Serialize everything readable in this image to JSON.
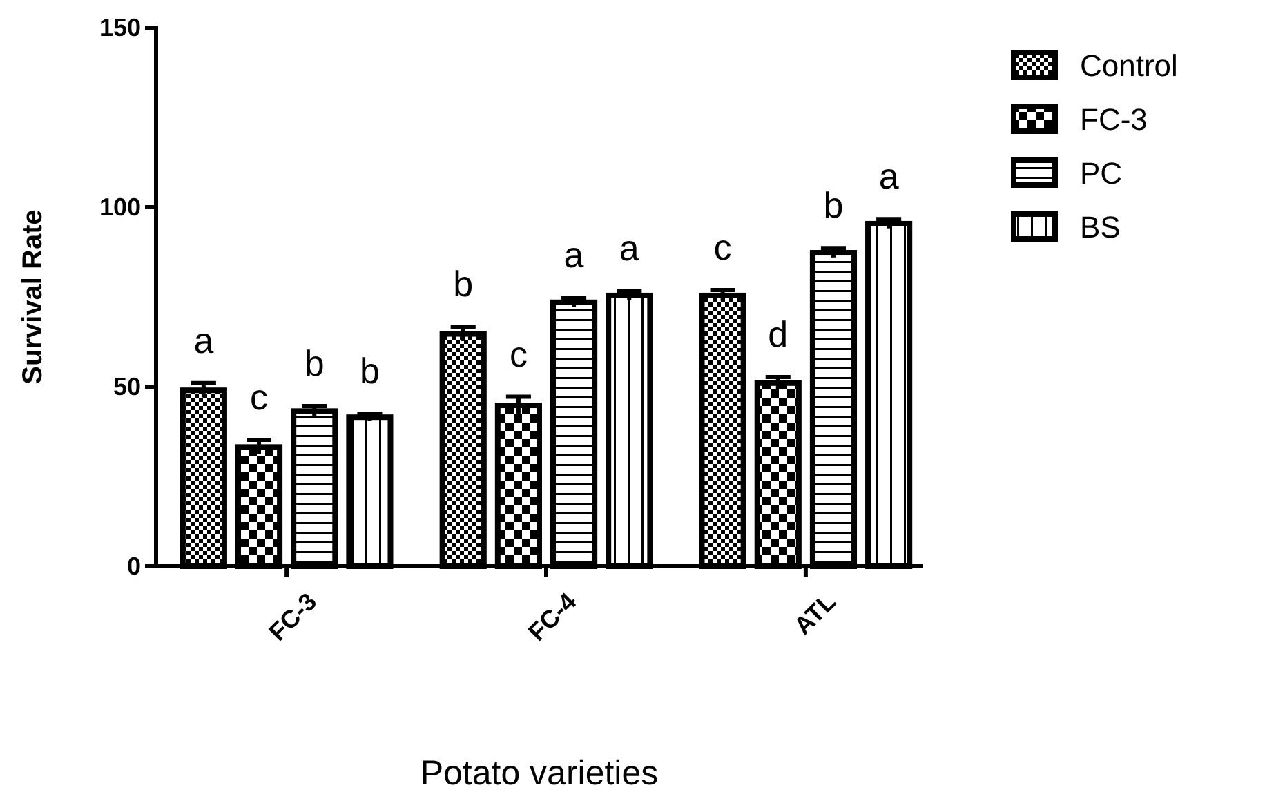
{
  "chart_data": {
    "type": "bar",
    "xlabel": "Potato varieties",
    "ylabel": "Survival Rate",
    "categories": [
      "FC-3",
      "FC-4",
      "ATL"
    ],
    "series": [
      {
        "name": "Control",
        "color": "#000000",
        "values": [
          49,
          64.7,
          75.4
        ],
        "errors": [
          2,
          2,
          1.5
        ],
        "value_labels": [
          "a",
          "b",
          "c"
        ]
      },
      {
        "name": "FC-3",
        "color": "#000000",
        "values": [
          33.2,
          44.8,
          51
        ],
        "errors": [
          2,
          2.4,
          1.7
        ],
        "value_labels": [
          "c",
          "c",
          "d"
        ]
      },
      {
        "name": "PC",
        "color": "#000000",
        "values": [
          43.2,
          73.5,
          87.3
        ],
        "errors": [
          1.4,
          1.3,
          1.3
        ],
        "value_labels": [
          "b",
          "a",
          "b"
        ]
      },
      {
        "name": "BS",
        "color": "#000000",
        "values": [
          41.5,
          75.4,
          95.4
        ],
        "errors": [
          1,
          1.3,
          1.3
        ],
        "value_labels": [
          "b",
          "a",
          "a"
        ]
      }
    ],
    "ylim": [
      0,
      150
    ],
    "yticks": [
      0,
      50,
      100,
      150
    ],
    "grid": false,
    "legend": "top right"
  }
}
